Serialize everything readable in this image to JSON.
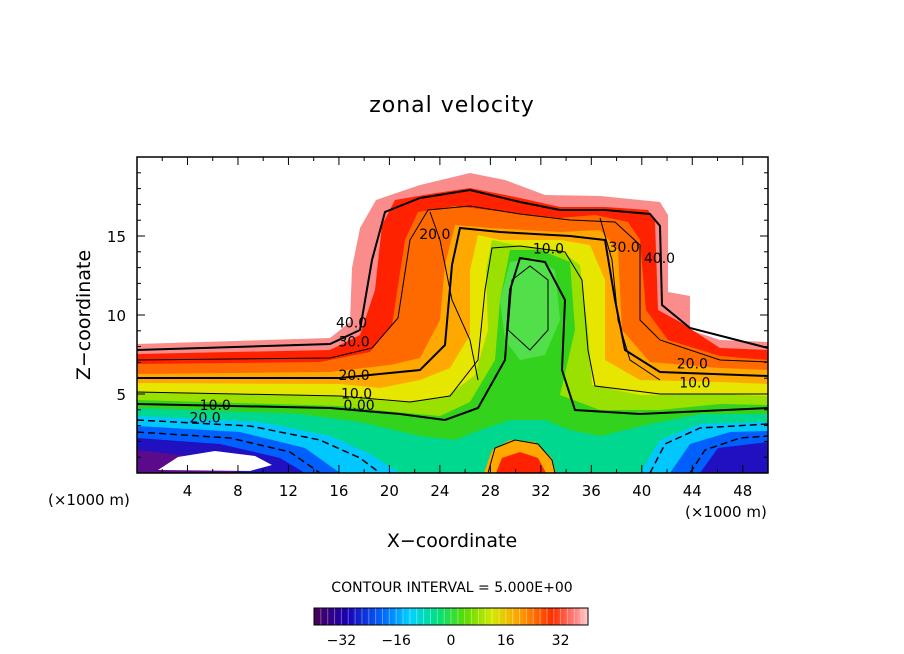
{
  "chart_data": {
    "type": "heatmap",
    "subtype": "filled-contour",
    "title": "zonal velocity",
    "xlabel": "X−coordinate",
    "ylabel": "Z−coordinate",
    "x_units": "(×1000 m)",
    "x_units_right": "(×1000 m)",
    "xlim": [
      0,
      50
    ],
    "ylim": [
      0,
      20
    ],
    "x_ticks": [
      4,
      8,
      12,
      16,
      20,
      24,
      28,
      32,
      36,
      40,
      44,
      48
    ],
    "y_ticks": [
      5,
      10,
      15
    ],
    "contour_interval_text": "CONTOUR INTERVAL = 5.000E+00",
    "colorbar": {
      "range": [
        -40,
        40
      ],
      "ticks": [
        -32,
        -16,
        0,
        16,
        32
      ]
    },
    "contour_labels": [
      {
        "text": "40.0",
        "x": 17.0,
        "y": 9.2
      },
      {
        "text": "30.0",
        "x": 17.2,
        "y": 8.0
      },
      {
        "text": "20.0",
        "x": 17.2,
        "y": 5.9
      },
      {
        "text": "10.0",
        "x": 17.4,
        "y": 4.7
      },
      {
        "text": "0.00",
        "x": 17.6,
        "y": 4.0
      },
      {
        "text": "10.0",
        "x": 6.2,
        "y": 4.0
      },
      {
        "text": "20.0",
        "x": 5.4,
        "y": 3.2
      },
      {
        "text": "20.0",
        "x": 23.6,
        "y": 14.8
      },
      {
        "text": "10.0",
        "x": 32.6,
        "y": 13.9
      },
      {
        "text": "30.0",
        "x": 38.6,
        "y": 14.0
      },
      {
        "text": "40.0",
        "x": 41.4,
        "y": 13.3
      },
      {
        "text": "20.0",
        "x": 44.0,
        "y": 6.6
      },
      {
        "text": "10.0",
        "x": 44.2,
        "y": 5.4
      }
    ]
  }
}
